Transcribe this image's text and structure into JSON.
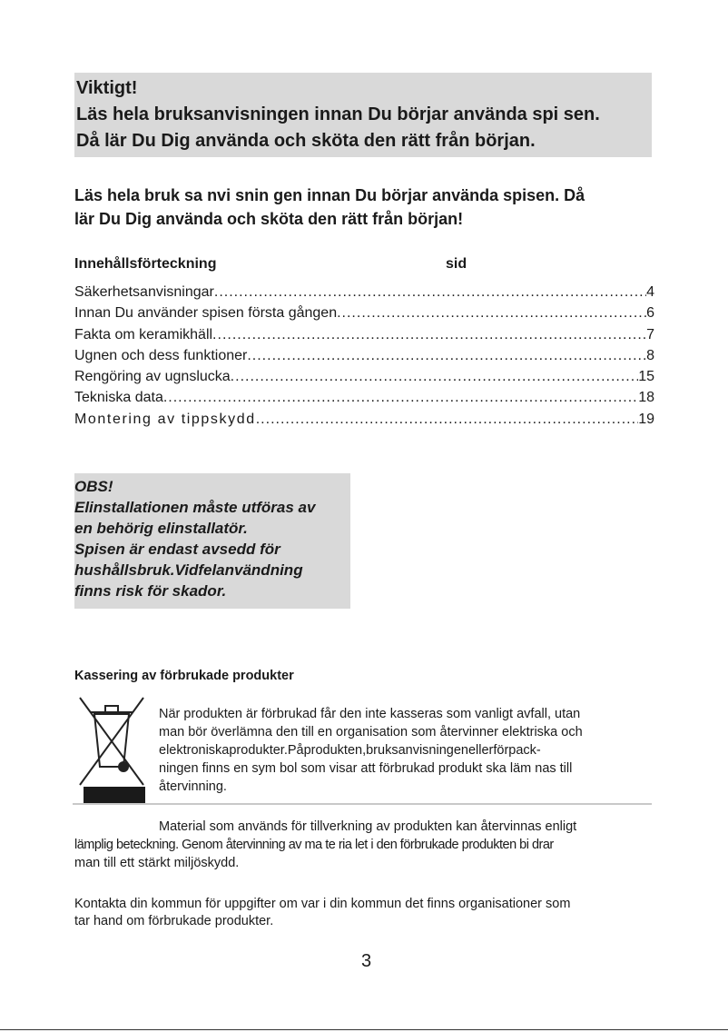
{
  "important_box": {
    "title": "Viktigt!",
    "line1": "Läs hela bruksanvisningen innan Du börjar använda spi sen.",
    "line2": "Då lär Du Dig använda och sköta den rätt från början."
  },
  "intro": {
    "line1": "Läs hela bruk sa nvi snin gen innan Du börjar använda spisen. Då",
    "line2": "lär Du Dig använda och sköta den rätt från början!"
  },
  "toc": {
    "heading": "Innehållsförteckning",
    "page_heading": "sid",
    "entries": [
      {
        "title": "Säkerhetsanvisningar",
        "page": "4"
      },
      {
        "title": "Innan Du använder spisen första gången ",
        "page": "6"
      },
      {
        "title": "Fakta om keramikhäll ",
        "page": "7"
      },
      {
        "title": "Ugnen och dess funktioner",
        "page": "8"
      },
      {
        "title": "Rengöring av ugnslucka",
        "page": "15"
      },
      {
        "title": "Tekniska data",
        "page": "18"
      },
      {
        "title": "Montering av tippskydd",
        "page": "19"
      }
    ],
    "leader": "..................................................................................................................................................."
  },
  "obs": {
    "lines": [
      "OBS!",
      "Elinstallationen måste utföras av",
      "en behörig elinstallatör.",
      "Spisen är endast avsedd för",
      "hushållsbruk.Vidfelanvändning",
      "finns risk för skador."
    ]
  },
  "disposal": {
    "heading": "Kassering av förbrukade produkter",
    "icon": "crossed-out-wheelie-bin-icon",
    "weee_lines": [
      "När produkten är förbrukad får den inte kasseras som vanligt avfall, utan",
      "man bör överlämna den till en organisation som återvinner elektriska och",
      "elektroniskaprodukter.Påprodukten,bruksanvisningenellerförpack-",
      "ningen finns en sym bol som visar att förbrukad produkt ska läm nas till",
      "återvinning."
    ],
    "material_lines": [
      "Material som används för tillverkning av produkten kan återvinnas enligt",
      "lämplig beteckning. Genom återvinning av ma te ria let i den förbrukade produkten bi drar",
      "man till ett stärkt miljöskydd."
    ],
    "contact_lines": [
      "Kontakta din kommun för uppgifter om var i din kommun det finns organisationer som",
      "tar hand om förbrukade produkter."
    ]
  },
  "page_number": "3"
}
